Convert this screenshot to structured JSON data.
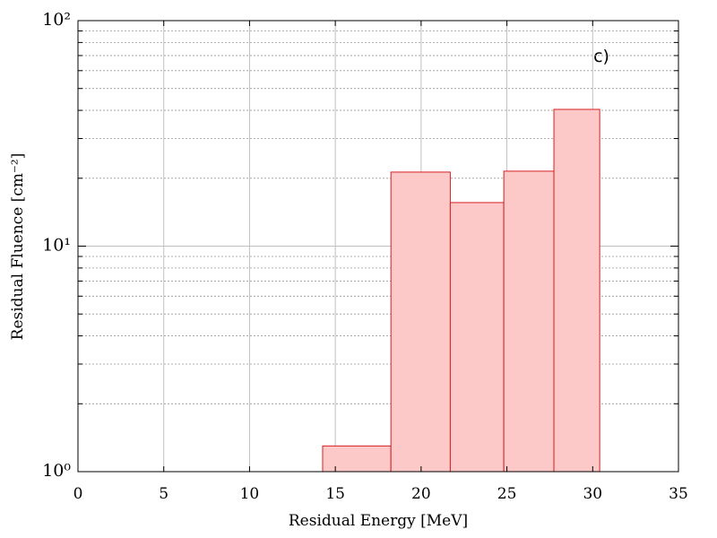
{
  "chart_data": {
    "type": "histogram",
    "xlabel": "Residual Energy [MeV]",
    "ylabel": "Residual Fluence [cm⁻²]",
    "annotation": "c)",
    "bins": [
      14.26,
      18.24,
      21.7,
      24.82,
      27.74,
      30.41
    ],
    "values": [
      1.3,
      21.3,
      15.6,
      21.5,
      40.4
    ],
    "color": "#fdc8c8",
    "edgecolor": "#d42020",
    "log_y": true,
    "grid": true,
    "xlim": [
      0,
      35
    ],
    "xticks": [
      0,
      5,
      10,
      15,
      20,
      25,
      30,
      35
    ],
    "ylim": [
      1,
      100
    ],
    "yticks": [
      {
        "value": 1,
        "label": "10⁰"
      },
      {
        "value": 10,
        "label": "10¹"
      },
      {
        "value": 100,
        "label": "10²"
      }
    ],
    "yminorticks": [
      2,
      3,
      4,
      5,
      6,
      7,
      8,
      9,
      20,
      30,
      40,
      50,
      60,
      70,
      80,
      90
    ]
  }
}
